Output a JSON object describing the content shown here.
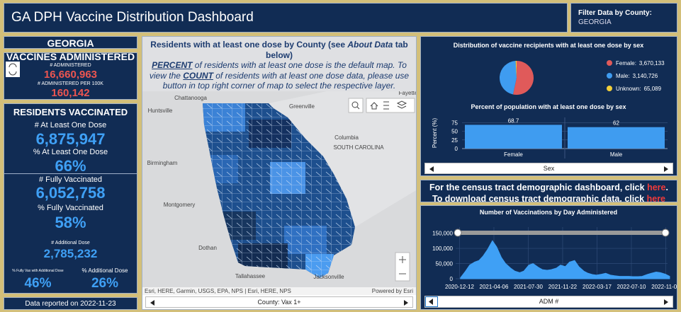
{
  "header": {
    "title": "GA DPH Vaccine Distribution Dashboard",
    "filter_label": "Filter Data by County:",
    "filter_value": "GEORGIA"
  },
  "left": {
    "state": "GEORGIA",
    "administered": {
      "title": "VACCINES ADMINISTERED",
      "count_label": "# ADMINISTERED",
      "count": "16,660,963",
      "per100k_label": "# ADMINISTERED PER 100K",
      "per100k": "160,142"
    },
    "residents": {
      "title": "RESIDENTS VACCINATED",
      "one_dose_label": "# At Least One Dose",
      "one_dose": "6,875,947",
      "one_dose_pct_label": "% At Least One Dose",
      "one_dose_pct": "66%",
      "full_label": "# Fully Vaccinated",
      "full": "6,052,758",
      "full_pct_label": "% Fully Vaccinated",
      "full_pct": "58%",
      "additional_label": "# Additional Dose",
      "additional": "2,785,232",
      "full_add_pct_label": "% Fully Vax with Additional Dose",
      "full_add_pct": "46%",
      "add_pct_label": "% Additional Dose",
      "add_pct": "26%"
    },
    "reported": "Data reported on 2022-11-23"
  },
  "map": {
    "heading": [
      "Residents with at least one dose by County (see ",
      "About Data",
      " tab below)"
    ],
    "body": [
      "PERCENT",
      " of residents with at least one dose is the default map. To view the ",
      "COUNT",
      " of residents with at least one dose data, please use button in top right corner of map to select the respective layer."
    ],
    "labels": [
      "Chattanooga",
      "Greenville",
      "Huntsville",
      "Fayette",
      "Columbia",
      "SOUTH CAROLINA",
      "Birmingham",
      "Montgomery",
      "Dothan",
      "Tallahassee",
      "Jacksonville"
    ],
    "attribution": "Esri, HERE, Garmin, USGS, EPA, NPS | Esri, HERE, NPS",
    "powered": "Powered by Esri",
    "footer": "County: Vax 1+"
  },
  "census": {
    "line1": [
      "For the census tract demographic dashboard, click ",
      "here",
      "."
    ],
    "line2": [
      "To download census tract demographic data, click ",
      "here"
    ]
  },
  "charts": {
    "sex_pie": {
      "type": "pie",
      "title": "Distribution of vaccine recipients with at least one dose by sex",
      "categories": [
        "Female",
        "Male",
        "Unknown"
      ],
      "values": [
        3670133,
        3140726,
        65089
      ],
      "value_labels": [
        "3,670,133",
        "3,140,726",
        "65,089"
      ],
      "colors": [
        "#e05a5a",
        "#3f9cf0",
        "#f2cf3a"
      ]
    },
    "sex_bar": {
      "type": "bar",
      "title": "Percent of population with at least one dose by sex",
      "categories": [
        "Female",
        "Male"
      ],
      "values": [
        68.7,
        62
      ],
      "color": "#3f9cf0",
      "ylabel": "Percent (%)",
      "ylim": [
        0,
        90
      ],
      "yticks": [
        0,
        25,
        50,
        75
      ],
      "grid": true,
      "xlabel": "Sex"
    },
    "daily": {
      "type": "area",
      "title": "Number of Vaccinations by Day Administered",
      "x": [
        "2020-12-15",
        "2021-01-01",
        "2021-01-15",
        "2021-02-01",
        "2021-02-15",
        "2021-03-01",
        "2021-03-15",
        "2021-04-01",
        "2021-04-15",
        "2021-05-01",
        "2021-05-15",
        "2021-06-01",
        "2021-06-15",
        "2021-07-01",
        "2021-07-15",
        "2021-08-01",
        "2021-08-15",
        "2021-09-01",
        "2021-09-15",
        "2021-10-01",
        "2021-10-15",
        "2021-11-01",
        "2021-11-15",
        "2021-12-01",
        "2021-12-15",
        "2022-01-01",
        "2022-01-15",
        "2022-02-01",
        "2022-02-15",
        "2022-03-01",
        "2022-03-15",
        "2022-04-01",
        "2022-04-15",
        "2022-05-01",
        "2022-05-15",
        "2022-06-01",
        "2022-06-15",
        "2022-07-01",
        "2022-07-15",
        "2022-08-01",
        "2022-08-15",
        "2022-09-01",
        "2022-09-15",
        "2022-10-01",
        "2022-10-15",
        "2022-11-01",
        "2022-11-15"
      ],
      "values": [
        3000,
        25000,
        45000,
        55000,
        60000,
        75000,
        95000,
        125000,
        105000,
        70000,
        50000,
        35000,
        25000,
        20000,
        25000,
        45000,
        50000,
        38000,
        30000,
        28000,
        30000,
        35000,
        45000,
        40000,
        55000,
        60000,
        40000,
        25000,
        18000,
        14000,
        12000,
        15000,
        18000,
        12000,
        10000,
        8000,
        8000,
        8000,
        7000,
        7000,
        8000,
        14000,
        18000,
        22000,
        20000,
        15000,
        8000
      ],
      "color": "#3fa0f5",
      "xlim": [
        "2020-11-29",
        "2022-11-08"
      ],
      "xticks": [
        "2020-12-12",
        "2021-04-06",
        "2021-07-30",
        "2021-11-22",
        "2022-03-17",
        "2022-07-10",
        "2022-11-02"
      ],
      "ylim": [
        0,
        170000
      ],
      "yticks": [
        0,
        {
          "value": 50000,
          "label": "50,000"
        },
        {
          "value": 100000,
          "label": "100,000"
        },
        {
          "value": 150000,
          "label": "150,000"
        }
      ],
      "grid": true,
      "xlabel": "ADM #"
    }
  }
}
